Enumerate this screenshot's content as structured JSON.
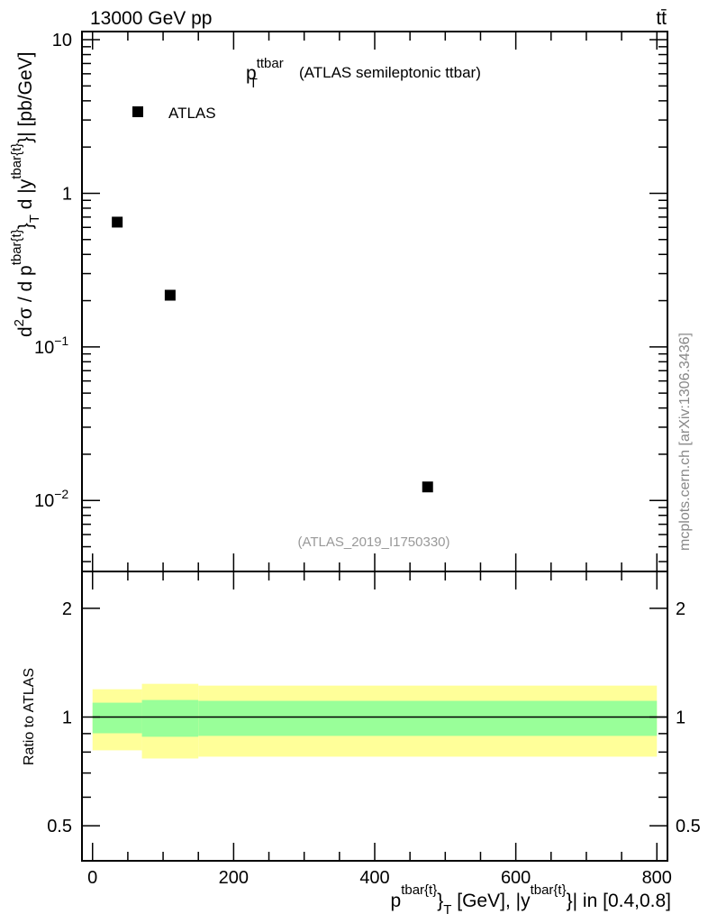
{
  "header": {
    "energy_label": "13000 GeV pp",
    "process_label": "tt̄"
  },
  "side_label": "mcplots.cern.ch [arXiv:1306.3436]",
  "chart_data": [
    {
      "type": "scatter",
      "title_main": "p",
      "title_sup": "ttbar",
      "title_sub": "T",
      "title_rest": "(ATLAS semileptonic ttbar)",
      "analysis_label": "(ATLAS_2019_I1750330)",
      "ylabel": "d²σ / d p^{tbar{t}}_T d |y^{tbar{t}}| [pb/GeV]",
      "ylabel_parts": {
        "a": "d",
        "a_sup": "2",
        "b": "σ /  d p",
        "b_sup": "tbar{t}",
        "c": "}",
        "c_sub": "T",
        "d": " d |y",
        "d_sup": "tbar{t}",
        "e": "}| [pb/GeV]"
      },
      "yscale": "log",
      "ylim": [
        0.00345,
        11.3
      ],
      "xlim": [
        -15,
        815
      ],
      "ytick_labels": [
        {
          "v": 10,
          "t": "10"
        },
        {
          "v": 1,
          "t": "1"
        },
        {
          "v": 0.1,
          "t": "10",
          "exp": "−1"
        },
        {
          "v": 0.01,
          "t": "10",
          "exp": "−2"
        }
      ],
      "legend": {
        "label": "ATLAS",
        "placement": "top-left"
      },
      "series": [
        {
          "name": "ATLAS",
          "x": [
            35,
            110,
            475
          ],
          "y": [
            0.649,
            0.217,
            0.01225
          ]
        }
      ]
    },
    {
      "type": "area",
      "ylabel": "Ratio to ATLAS",
      "yscale": "log",
      "ylim": [
        0.4,
        2.53
      ],
      "xlim": [
        -15,
        815
      ],
      "ytick_labels": [
        {
          "v": 2,
          "t": "2"
        },
        {
          "v": 1,
          "t": "1"
        },
        {
          "v": 0.5,
          "t": "0.5"
        }
      ],
      "xtick_labels": [
        {
          "v": 0,
          "t": "0"
        },
        {
          "v": 200,
          "t": "200"
        },
        {
          "v": 400,
          "t": "400"
        },
        {
          "v": 600,
          "t": "600"
        },
        {
          "v": 800,
          "t": "800"
        }
      ],
      "xlabel_parts": {
        "a": "p",
        "a_sup": "tbar{t}",
        "b": "}",
        "b_sub": "T",
        "c": " [GeV], |y",
        "c_sup": "tbar{t}",
        "d": "}| in [0.4,0.8]"
      },
      "bins": [
        [
          0,
          70
        ],
        [
          70,
          150
        ],
        [
          150,
          800
        ]
      ],
      "band_outer": {
        "low": [
          0.809,
          0.768,
          0.777
        ],
        "high": [
          1.194,
          1.236,
          1.222
        ],
        "color": "#ffff99"
      },
      "band_inner": {
        "low": [
          0.902,
          0.882,
          0.887
        ],
        "high": [
          1.096,
          1.115,
          1.109
        ],
        "color": "#99ff99"
      },
      "reference_line": 1
    }
  ]
}
